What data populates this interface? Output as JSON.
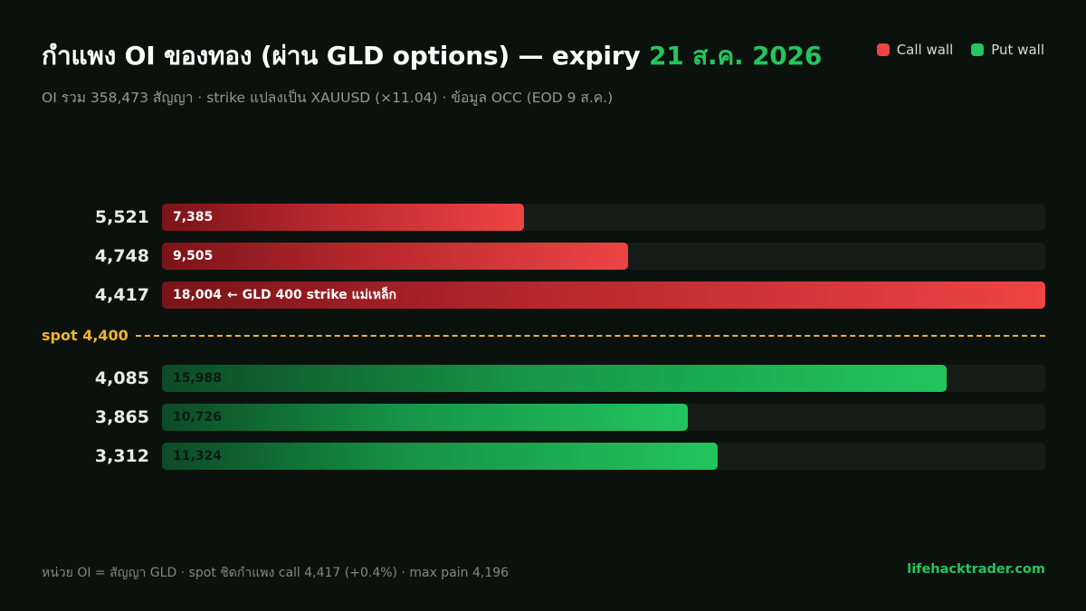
{
  "title": {
    "main": "กำแพง OI ของทอง (ผ่าน GLD options) — expiry ",
    "date": "21 ส.ค. 2026"
  },
  "subtitle": "OI รวม 358,473 สัญญา · strike แปลงเป็น XAUUSD (×11.04) · ข้อมูล OCC (EOD 9 ส.ค.)",
  "legend": {
    "call": "Call wall",
    "put": "Put wall"
  },
  "colors": {
    "call": "#ef4444",
    "put": "#22c55e",
    "spot": "#f0b429",
    "background": "#0b120e"
  },
  "spot_label": "spot 4,400",
  "footer": "หน่วย OI = สัญญา GLD · spot ชิดกำแพง call 4,417 (+0.4%) · max pain 4,196",
  "brand": "lifehacktrader.com",
  "chart_data": {
    "type": "bar",
    "orientation": "horizontal",
    "value_max": 18004,
    "spot": 4400,
    "rows": [
      {
        "strike": "5,521",
        "value": 7385,
        "value_label": "7,385",
        "side": "call",
        "note": ""
      },
      {
        "strike": "4,748",
        "value": 9505,
        "value_label": "9,505",
        "side": "call",
        "note": ""
      },
      {
        "strike": "4,417",
        "value": 18004,
        "value_label": "18,004",
        "side": "call",
        "note": "← GLD 400 strike แม่เหล็ก"
      },
      {
        "strike": "4,085",
        "value": 15988,
        "value_label": "15,988",
        "side": "put",
        "note": ""
      },
      {
        "strike": "3,865",
        "value": 10726,
        "value_label": "10,726",
        "side": "put",
        "note": ""
      },
      {
        "strike": "3,312",
        "value": 11324,
        "value_label": "11,324",
        "side": "put",
        "note": ""
      }
    ]
  }
}
